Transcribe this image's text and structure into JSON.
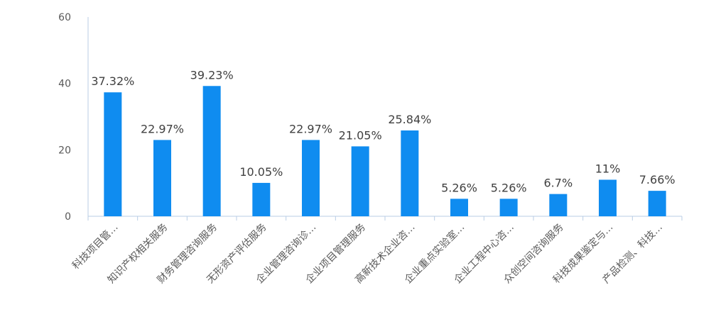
{
  "chart_data": {
    "type": "bar",
    "title": "",
    "xlabel": "",
    "ylabel": "",
    "ylim": [
      0,
      60
    ],
    "yticks": [
      0,
      20,
      40,
      60
    ],
    "grid": false,
    "legend": "none",
    "bar_color": "#0f8cf0",
    "axis_color": "#b9cde5",
    "categories": [
      "科技项目管…",
      "知识产权相关服务",
      "财务管理咨询服务",
      "无形资产评估服务",
      "企业管理咨询诊…",
      "企业项目管理服务",
      "高新技术企业咨…",
      "企业重点实验室…",
      "企业工程中心咨…",
      "众创空间咨询服务",
      "科技成果鉴定与…",
      "产品检测、科技…"
    ],
    "values": [
      37.32,
      22.97,
      39.23,
      10.05,
      22.97,
      21.05,
      25.84,
      5.26,
      5.26,
      6.7,
      11,
      7.66
    ],
    "data_labels": [
      "37.32%",
      "22.97%",
      "39.23%",
      "10.05%",
      "22.97%",
      "21.05%",
      "25.84%",
      "5.26%",
      "5.26%",
      "6.7%",
      "11%",
      "7.66%"
    ]
  }
}
